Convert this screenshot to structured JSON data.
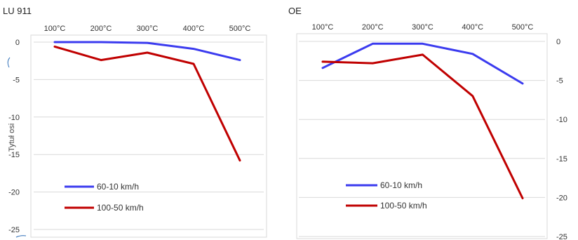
{
  "chart_data": [
    {
      "type": "line",
      "title": "LU 911",
      "categories": [
        "100°C",
        "200°C",
        "300°C",
        "400°C",
        "500°C"
      ],
      "ylabel": "Tytuł osi",
      "ylim": [
        -25,
        0
      ],
      "y_ticks": [
        "0",
        "-5",
        "-10",
        "-15",
        "-20",
        "-25"
      ],
      "y_axis_side": "left",
      "x_axis_position": "top",
      "grid": true,
      "legend_position": "bottom-left",
      "series": [
        {
          "name": "60-10 km/h",
          "color": "#3b3bef",
          "values": [
            0,
            0,
            -0.1,
            -0.9,
            -2.4
          ]
        },
        {
          "name": "100-50 km/h",
          "color": "#c00000",
          "values": [
            -0.6,
            -2.4,
            -1.4,
            -2.9,
            -15.8
          ]
        }
      ]
    },
    {
      "type": "line",
      "title": "OE",
      "categories": [
        "100°C",
        "200°C",
        "300°C",
        "400°C",
        "500°C"
      ],
      "ylim": [
        -25,
        0
      ],
      "y_ticks": [
        "0",
        "-5",
        "-10",
        "-15",
        "-20",
        "-25"
      ],
      "y_axis_side": "right",
      "x_axis_position": "top",
      "grid": true,
      "legend_position": "bottom-left",
      "series": [
        {
          "name": "60-10 km/h",
          "color": "#3b3bef",
          "values": [
            -3.4,
            -0.3,
            -0.3,
            -1.6,
            -5.4
          ]
        },
        {
          "name": "100-50 km/h",
          "color": "#c00000",
          "values": [
            -2.6,
            -2.8,
            -1.7,
            -7.0,
            -20.1
          ]
        }
      ]
    }
  ]
}
